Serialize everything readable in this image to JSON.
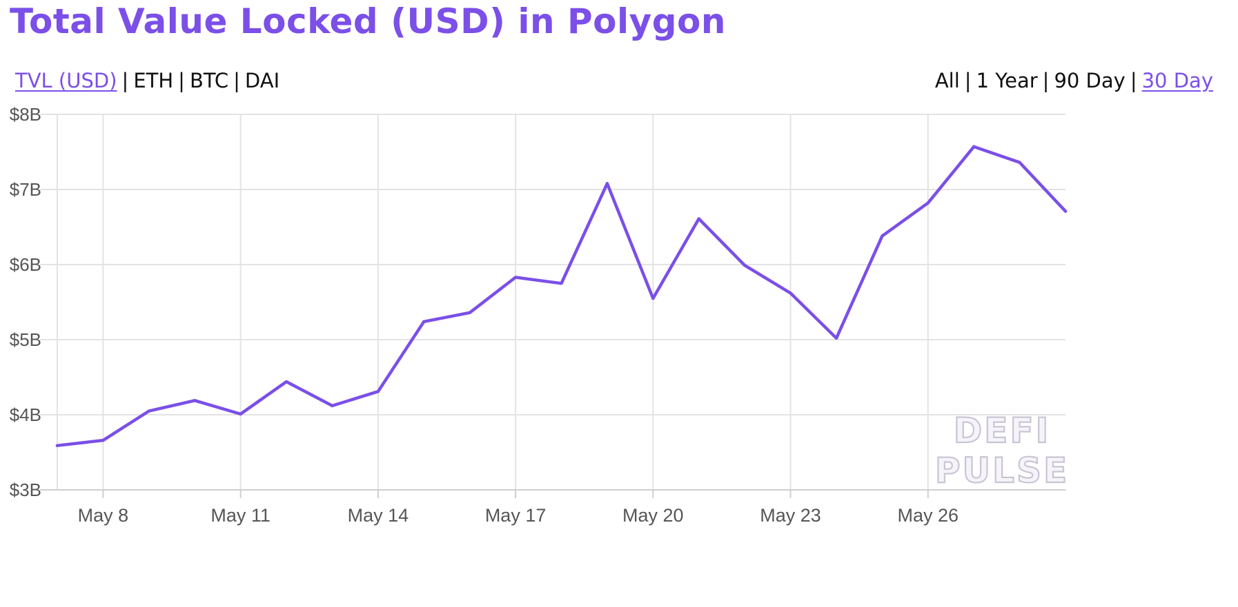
{
  "page": {
    "title": "Total Value Locked (USD) in Polygon",
    "accent_color": "#7b4fe8"
  },
  "metric_toggle": {
    "options": [
      "TVL (USD)",
      "ETH",
      "BTC",
      "DAI"
    ],
    "active": "TVL (USD)"
  },
  "range_toggle": {
    "options": [
      "All",
      "1 Year",
      "90 Day",
      "30 Day"
    ],
    "active": "30 Day"
  },
  "watermark": {
    "lines": [
      "DEFI",
      "PULSE"
    ]
  },
  "chart_data": {
    "type": "line",
    "title": "Total Value Locked (USD) in Polygon",
    "xlabel": "",
    "ylabel": "",
    "ylim": [
      3,
      8
    ],
    "y_unit": "billion USD",
    "yticks": [
      3,
      4,
      5,
      6,
      7,
      8
    ],
    "ytick_labels": [
      "$3B",
      "$4B",
      "$5B",
      "$6B",
      "$7B",
      "$8B"
    ],
    "xlim": [
      "May 7",
      "May 29"
    ],
    "xticks": [
      "May 8",
      "May 11",
      "May 14",
      "May 17",
      "May 20",
      "May 23",
      "May 26"
    ],
    "grid": true,
    "legend": false,
    "series": [
      {
        "color": "#7b4fe8",
        "points": [
          [
            "May 7",
            3.59
          ],
          [
            "May 8",
            3.66
          ],
          [
            "May 9",
            4.05
          ],
          [
            "May 10",
            4.19
          ],
          [
            "May 11",
            4.01
          ],
          [
            "May 12",
            4.44
          ],
          [
            "May 13",
            4.12
          ],
          [
            "May 14",
            4.31
          ],
          [
            "May 15",
            5.24
          ],
          [
            "May 16",
            5.36
          ],
          [
            "May 17",
            5.83
          ],
          [
            "May 18",
            5.75
          ],
          [
            "May 19",
            7.08
          ],
          [
            "May 20",
            5.55
          ],
          [
            "May 21",
            6.61
          ],
          [
            "May 22",
            5.99
          ],
          [
            "May 23",
            5.62
          ],
          [
            "May 24",
            5.02
          ],
          [
            "May 25",
            6.38
          ],
          [
            "May 26",
            6.82
          ],
          [
            "May 27",
            7.57
          ],
          [
            "May 28",
            7.36
          ],
          [
            "May 29",
            6.71
          ]
        ]
      }
    ]
  }
}
